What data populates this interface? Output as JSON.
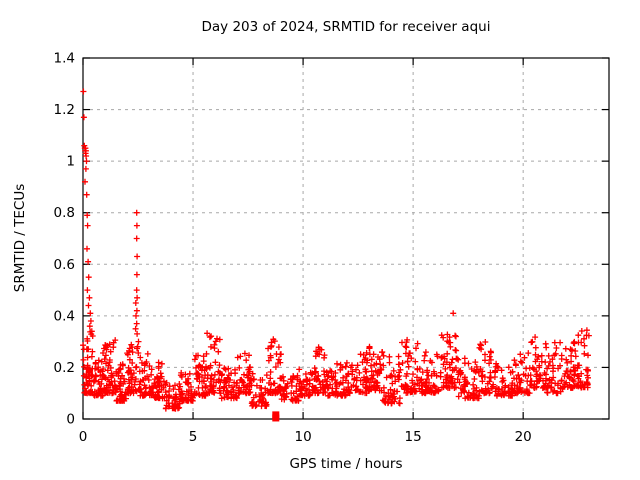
{
  "chart_data": {
    "type": "scatter",
    "title": "Day 203 of 2024, SRMTID for receiver aqui",
    "xlabel": "GPS time / hours",
    "ylabel": "SRMTID / TECUs",
    "xlim": [
      0,
      23.9
    ],
    "ylim": [
      0,
      1.4
    ],
    "xticks": {
      "values": [
        0,
        5,
        10,
        15,
        20
      ],
      "labels": [
        "0",
        "5",
        "10",
        "15",
        "20"
      ]
    },
    "yticks": {
      "values": [
        0,
        0.2,
        0.4,
        0.6,
        0.8,
        1.0,
        1.2,
        1.4
      ],
      "labels": [
        "0",
        "0.2",
        "0.4",
        "0.6",
        "0.8",
        "1",
        "1.2",
        "1.4"
      ]
    },
    "grid": true,
    "legend": "none",
    "marker": "plus",
    "point_color": "#ff0000",
    "grid_color": "#a8a8a8",
    "border_color": "#000000",
    "background": "#ffffff",
    "seed": 11,
    "outlier_points": [
      [
        0.02,
        1.27
      ],
      [
        0.04,
        1.17
      ],
      [
        0.06,
        1.06
      ],
      [
        0.08,
        1.05
      ],
      [
        0.1,
        1.04
      ],
      [
        0.11,
        1.05
      ],
      [
        0.12,
        1.03
      ],
      [
        0.13,
        1.04
      ],
      [
        0.14,
        1.02
      ],
      [
        0.16,
        1.0
      ],
      [
        0.13,
        0.97
      ],
      [
        0.09,
        0.92
      ],
      [
        0.17,
        0.87
      ],
      [
        0.19,
        0.79
      ],
      [
        0.21,
        0.75
      ],
      [
        0.18,
        0.66
      ],
      [
        0.23,
        0.61
      ],
      [
        0.26,
        0.55
      ],
      [
        0.2,
        0.5
      ],
      [
        0.29,
        0.47
      ],
      [
        0.25,
        0.44
      ],
      [
        0.33,
        0.41
      ],
      [
        0.36,
        0.38
      ],
      [
        0.31,
        0.36
      ],
      [
        0.4,
        0.34
      ],
      [
        2.44,
        0.8
      ],
      [
        2.45,
        0.75
      ],
      [
        2.44,
        0.7
      ],
      [
        2.46,
        0.63
      ],
      [
        2.45,
        0.56
      ],
      [
        2.44,
        0.5
      ],
      [
        2.46,
        0.47
      ],
      [
        2.45,
        0.42
      ],
      [
        2.44,
        0.37
      ],
      [
        2.46,
        0.33
      ],
      [
        2.4,
        0.45
      ],
      [
        2.41,
        0.4
      ],
      [
        2.39,
        0.35
      ],
      [
        2.52,
        0.3
      ],
      [
        16.82,
        0.41
      ]
    ],
    "square_points": [
      [
        8.76,
        0.004
      ],
      [
        8.76,
        0.016
      ]
    ],
    "band_segments": [
      [
        0.0,
        0.5,
        0.1,
        0.34,
        55
      ],
      [
        0.5,
        1.0,
        0.09,
        0.28,
        50
      ],
      [
        1.0,
        1.5,
        0.1,
        0.31,
        50
      ],
      [
        1.5,
        2.0,
        0.07,
        0.22,
        45
      ],
      [
        2.0,
        2.6,
        0.1,
        0.3,
        50
      ],
      [
        2.6,
        3.2,
        0.09,
        0.26,
        45
      ],
      [
        3.2,
        3.7,
        0.08,
        0.22,
        40
      ],
      [
        3.7,
        4.4,
        0.04,
        0.14,
        45
      ],
      [
        4.4,
        5.0,
        0.07,
        0.18,
        45
      ],
      [
        5.0,
        5.6,
        0.09,
        0.25,
        45
      ],
      [
        5.6,
        6.3,
        0.1,
        0.34,
        50
      ],
      [
        6.3,
        7.0,
        0.08,
        0.2,
        45
      ],
      [
        7.0,
        7.6,
        0.1,
        0.27,
        45
      ],
      [
        7.6,
        8.4,
        0.05,
        0.18,
        45
      ],
      [
        8.4,
        9.0,
        0.1,
        0.31,
        45
      ],
      [
        9.0,
        9.8,
        0.07,
        0.17,
        45
      ],
      [
        9.8,
        10.5,
        0.09,
        0.2,
        45
      ],
      [
        10.5,
        11.0,
        0.1,
        0.28,
        40
      ],
      [
        11.0,
        12.0,
        0.09,
        0.23,
        60
      ],
      [
        12.0,
        13.0,
        0.1,
        0.26,
        60
      ],
      [
        13.0,
        13.6,
        0.11,
        0.33,
        45
      ],
      [
        13.6,
        14.4,
        0.06,
        0.25,
        50
      ],
      [
        14.4,
        15.3,
        0.1,
        0.32,
        55
      ],
      [
        15.3,
        16.2,
        0.1,
        0.26,
        55
      ],
      [
        16.2,
        17.0,
        0.12,
        0.34,
        55
      ],
      [
        17.0,
        18.0,
        0.08,
        0.24,
        60
      ],
      [
        18.0,
        18.6,
        0.1,
        0.3,
        40
      ],
      [
        18.6,
        19.5,
        0.09,
        0.22,
        50
      ],
      [
        19.5,
        20.3,
        0.1,
        0.26,
        50
      ],
      [
        20.3,
        21.0,
        0.12,
        0.33,
        45
      ],
      [
        21.0,
        21.8,
        0.1,
        0.3,
        50
      ],
      [
        21.8,
        22.4,
        0.12,
        0.3,
        45
      ],
      [
        22.4,
        23.0,
        0.12,
        0.35,
        45
      ]
    ]
  }
}
